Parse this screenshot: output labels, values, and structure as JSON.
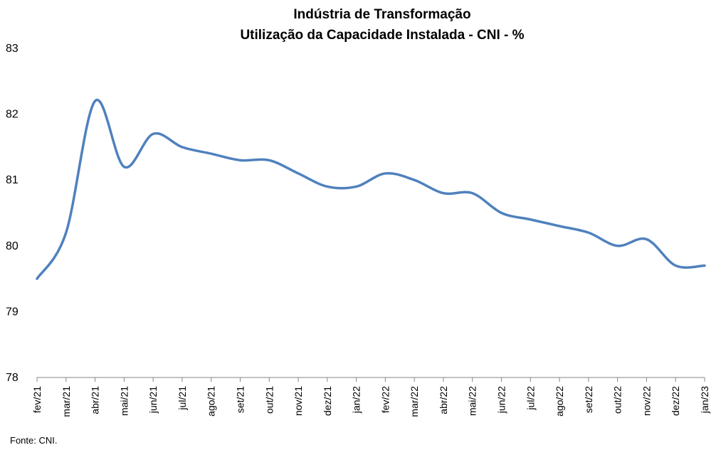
{
  "chart_data": {
    "type": "line",
    "title": "Indústria de Transformação",
    "subtitle": "Utilização da Capacidade Instalada - CNI - %",
    "xlabel": "",
    "ylabel": "",
    "ylim": [
      78,
      83
    ],
    "yticks": [
      "78",
      "79",
      "80",
      "81",
      "82",
      "83"
    ],
    "grid": false,
    "legend": "none",
    "categories": [
      "fev/21",
      "mar/21",
      "abr/21",
      "mai/21",
      "jun/21",
      "jul/21",
      "ago/21",
      "set/21",
      "out/21",
      "nov/21",
      "dez/21",
      "jan/22",
      "fev/22",
      "mar/22",
      "abr/22",
      "mai/22",
      "jun/22",
      "jul/22",
      "ago/22",
      "set/22",
      "out/22",
      "nov/22",
      "dez/22",
      "jan/23"
    ],
    "series": [
      {
        "color": "#4f81bd",
        "values": [
          79.5,
          80.2,
          82.2,
          81.2,
          81.7,
          81.5,
          81.4,
          81.3,
          81.3,
          81.1,
          80.9,
          80.9,
          81.1,
          81.0,
          80.8,
          80.8,
          80.5,
          80.4,
          80.3,
          80.2,
          80.0,
          80.1,
          79.7,
          79.7
        ]
      }
    ]
  },
  "source_note": "Fonte: CNI."
}
